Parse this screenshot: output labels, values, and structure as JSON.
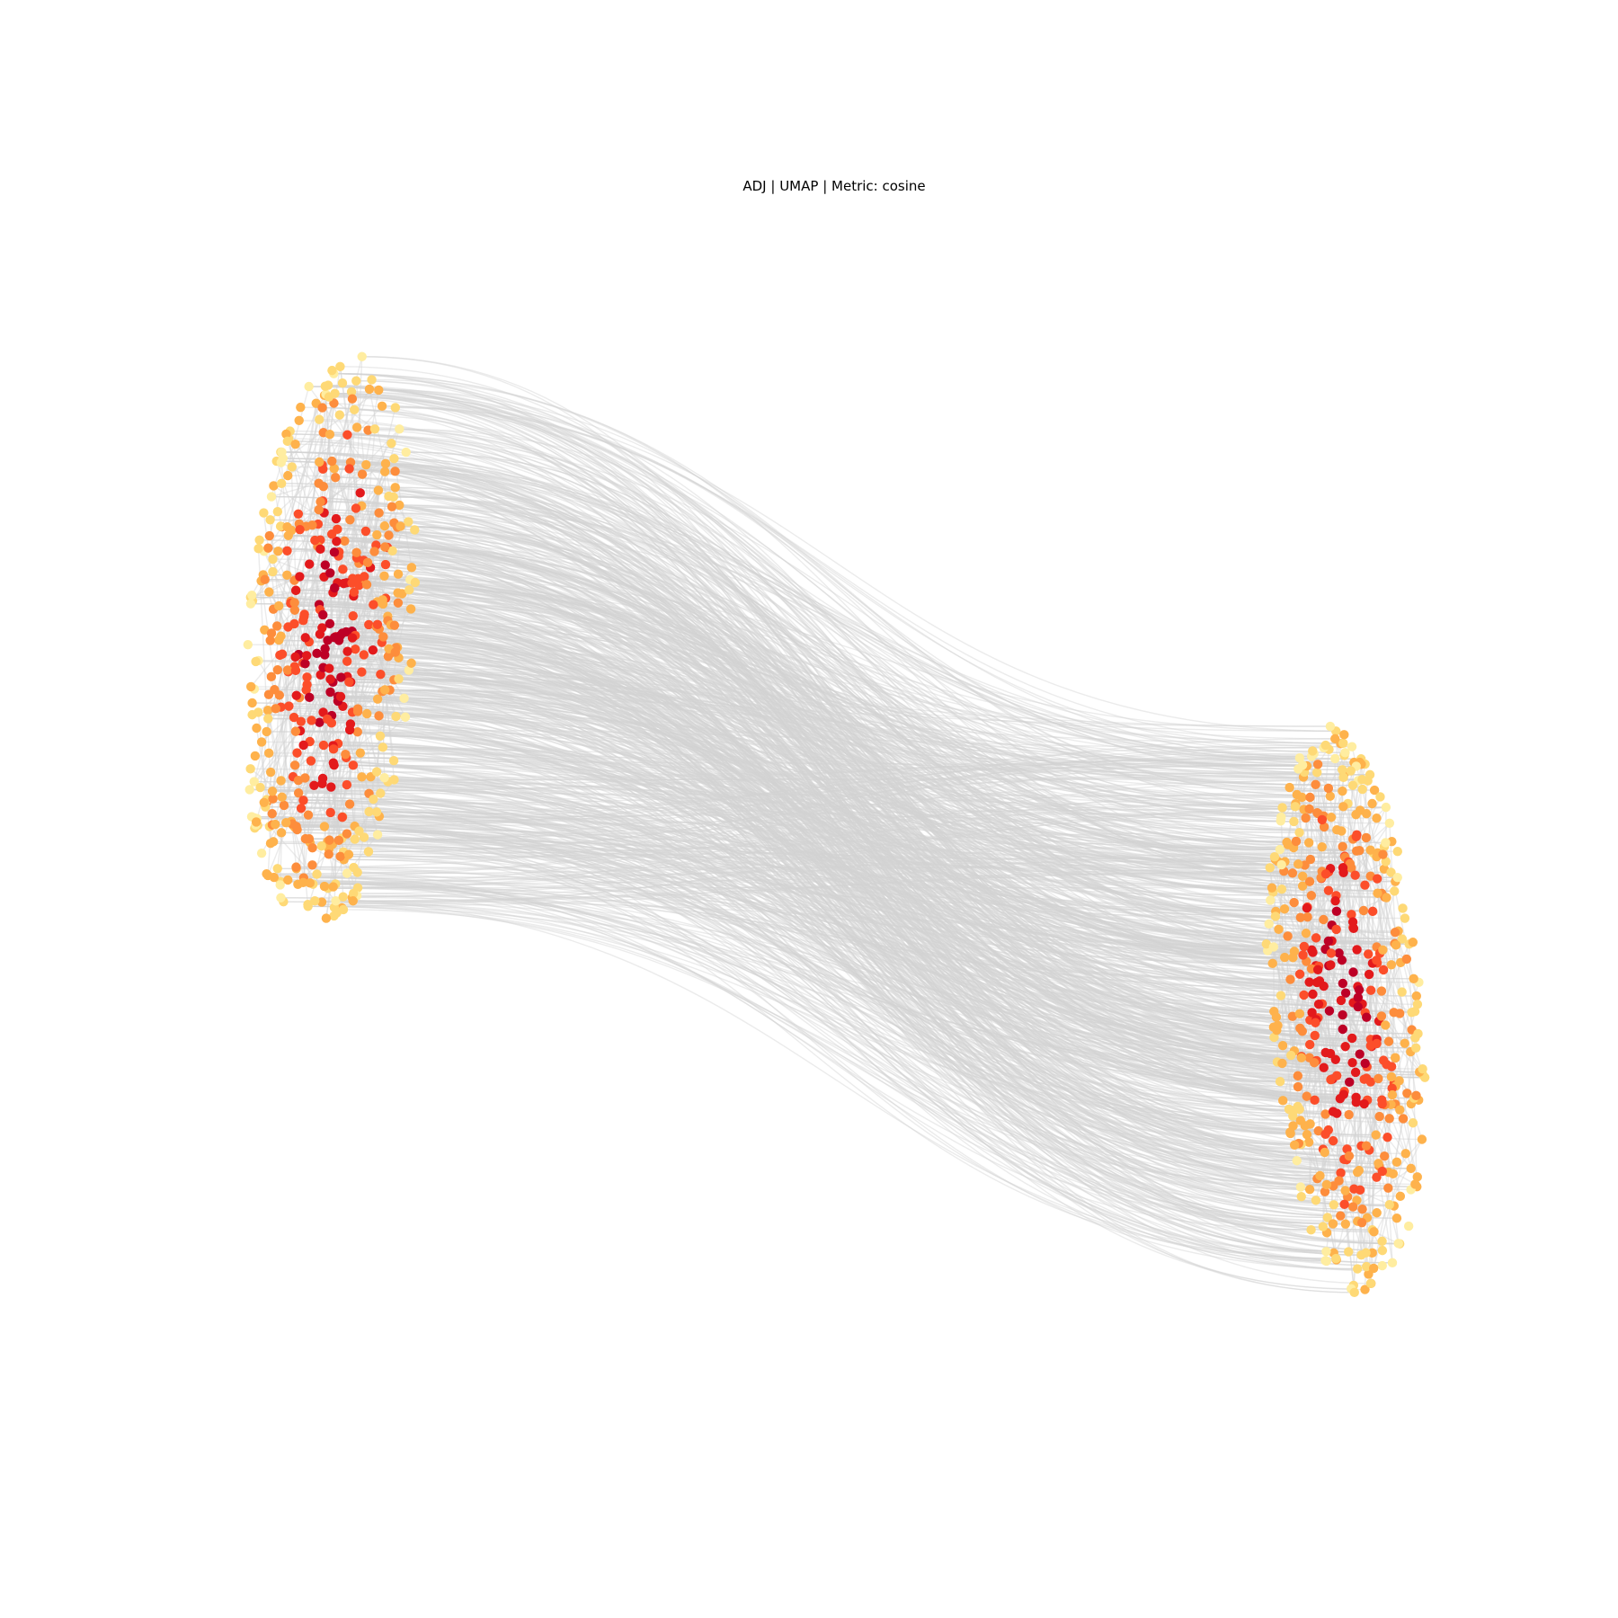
{
  "chart_data": {
    "type": "scatter",
    "title": "ADJ | UMAP | Metric: cosine",
    "xlabel": "",
    "ylabel": "",
    "axes_visible": false,
    "grid": false,
    "legend": "none",
    "edge_color": "#d3d3d3",
    "colormap": "YlOrRd",
    "palette": [
      "#ffeda0",
      "#fed976",
      "#feb24c",
      "#fd8d3c",
      "#fc4e2a",
      "#e31a1c",
      "#bd0026"
    ],
    "xlim": [
      -1.0,
      1.0
    ],
    "ylim": [
      -1.0,
      1.0
    ],
    "clusters": [
      {
        "center": [
          -0.78,
          0.28
        ],
        "rx": 0.13,
        "ry": 0.5,
        "tilt": 0.06
      },
      {
        "center": [
          0.8,
          -0.34
        ],
        "rx": 0.12,
        "ry": 0.48,
        "tilt": -0.06
      }
    ],
    "nodes_per_cluster": 480,
    "edge_count": 900
  }
}
